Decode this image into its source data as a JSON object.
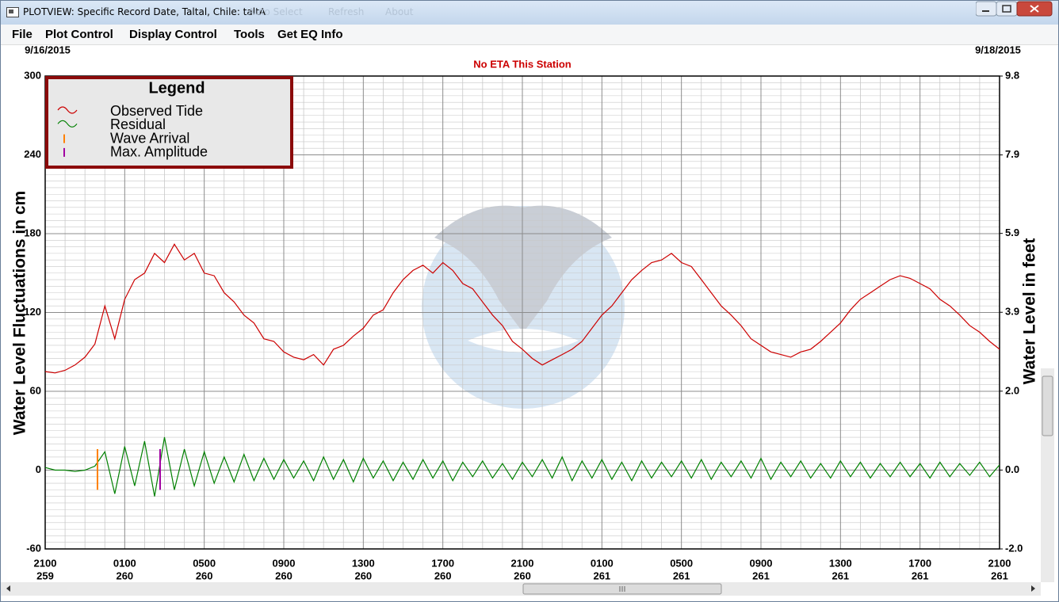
{
  "window": {
    "title": "PLOTVIEW: Specific Record Date, Taltal, Chile: taltA",
    "disabled_menu": [
      "Auto Select",
      "Refresh",
      "About"
    ]
  },
  "menu": [
    "File",
    "Plot Control",
    "Display Control",
    "Tools",
    "Get EQ Info"
  ],
  "chart_data": {
    "type": "line",
    "title": "No ETA This Station",
    "start_date": "9/16/2015",
    "end_date": "9/18/2015",
    "ylabel": "Water Level Fluctuations in cm",
    "y2label": "Water Level in feet",
    "legend_title": "Legend",
    "xlim": [
      0,
      48
    ],
    "xticks": [
      {
        "value": 0,
        "label": "2100",
        "day": "259"
      },
      {
        "value": 4,
        "label": "0100",
        "day": "260"
      },
      {
        "value": 8,
        "label": "0500",
        "day": "260"
      },
      {
        "value": 12,
        "label": "0900",
        "day": "260"
      },
      {
        "value": 16,
        "label": "1300",
        "day": "260"
      },
      {
        "value": 20,
        "label": "1700",
        "day": "260"
      },
      {
        "value": 24,
        "label": "2100",
        "day": "260"
      },
      {
        "value": 28,
        "label": "0100",
        "day": "261"
      },
      {
        "value": 32,
        "label": "0500",
        "day": "261"
      },
      {
        "value": 36,
        "label": "0900",
        "day": "261"
      },
      {
        "value": 40,
        "label": "1300",
        "day": "261"
      },
      {
        "value": 44,
        "label": "1700",
        "day": "261"
      },
      {
        "value": 48,
        "label": "2100",
        "day": "261"
      }
    ],
    "ylim": [
      -60,
      300
    ],
    "yticks": [
      -60,
      0,
      60,
      120,
      180,
      240,
      300
    ],
    "y2lim": [
      -1.97,
      9.84
    ],
    "y2ticks": [
      {
        "value": -1.97,
        "label": "-2.0"
      },
      {
        "value": 0,
        "label": "0.0"
      },
      {
        "value": 1.97,
        "label": "2.0"
      },
      {
        "value": 3.94,
        "label": "3.9"
      },
      {
        "value": 5.91,
        "label": "5.9"
      },
      {
        "value": 7.87,
        "label": "7.9"
      },
      {
        "value": 9.84,
        "label": "9.8"
      }
    ],
    "grid": true,
    "x": [
      0,
      0.5,
      1,
      1.5,
      2,
      2.5,
      3,
      3.5,
      4,
      4.5,
      5,
      5.5,
      6,
      6.5,
      7,
      7.5,
      8,
      8.5,
      9,
      9.5,
      10,
      10.5,
      11,
      11.5,
      12,
      12.5,
      13,
      13.5,
      14,
      14.5,
      15,
      15.5,
      16,
      16.5,
      17,
      17.5,
      18,
      18.5,
      19,
      19.5,
      20,
      20.5,
      21,
      21.5,
      22,
      22.5,
      23,
      23.5,
      24,
      24.5,
      25,
      25.5,
      26,
      26.5,
      27,
      27.5,
      28,
      28.5,
      29,
      29.5,
      30,
      30.5,
      31,
      31.5,
      32,
      32.5,
      33,
      33.5,
      34,
      34.5,
      35,
      35.5,
      36,
      36.5,
      37,
      37.5,
      38,
      38.5,
      39,
      39.5,
      40,
      40.5,
      41,
      41.5,
      42,
      42.5,
      43,
      43.5,
      44,
      44.5,
      45,
      45.5,
      46,
      46.5,
      47,
      47.5,
      48
    ],
    "series": [
      {
        "name": "Observed Tide",
        "color": "#cc0000",
        "values": [
          75,
          74,
          76,
          80,
          86,
          96,
          125,
          100,
          130,
          145,
          150,
          165,
          158,
          172,
          160,
          165,
          150,
          148,
          135,
          128,
          118,
          112,
          100,
          98,
          90,
          86,
          84,
          88,
          80,
          92,
          95,
          102,
          108,
          118,
          122,
          135,
          145,
          152,
          156,
          150,
          158,
          152,
          142,
          138,
          128,
          118,
          110,
          98,
          92,
          85,
          80,
          84,
          88,
          92,
          98,
          108,
          118,
          125,
          135,
          145,
          152,
          158,
          160,
          165,
          158,
          155,
          145,
          135,
          125,
          118,
          110,
          100,
          95,
          90,
          88,
          86,
          90,
          92,
          98,
          105,
          112,
          122,
          130,
          135,
          140,
          145,
          148,
          146,
          142,
          138,
          130,
          125,
          118,
          110,
          105,
          98,
          92
        ]
      },
      {
        "name": "Residual",
        "color": "#008000",
        "values": [
          2,
          0,
          0,
          -1,
          0,
          3,
          14,
          -18,
          18,
          -12,
          22,
          -20,
          25,
          -15,
          16,
          -12,
          14,
          -10,
          10,
          -9,
          12,
          -8,
          9,
          -7,
          8,
          -6,
          7,
          -8,
          10,
          -7,
          8,
          -9,
          9,
          -6,
          7,
          -8,
          6,
          -7,
          8,
          -6,
          7,
          -8,
          6,
          -5,
          7,
          -6,
          5,
          -7,
          6,
          -5,
          8,
          -6,
          10,
          -8,
          7,
          -6,
          8,
          -7,
          6,
          -8,
          7,
          -6,
          6,
          -5,
          7,
          -6,
          8,
          -7,
          6,
          -5,
          7,
          -6,
          9,
          -7,
          6,
          -5,
          7,
          -6,
          5,
          -6,
          7,
          -5,
          6,
          -6,
          5,
          -5,
          6,
          -5,
          5,
          -6,
          6,
          -5,
          5,
          -4,
          6,
          -5,
          4
        ]
      }
    ],
    "markers": [
      {
        "name": "Wave Arrival",
        "color": "#ff8000",
        "x": 2.63
      },
      {
        "name": "Max. Amplitude",
        "color": "#a000a0",
        "x": 5.78
      }
    ]
  }
}
